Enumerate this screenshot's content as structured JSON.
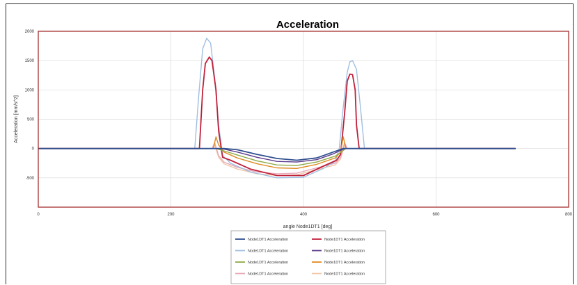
{
  "chart_data": {
    "type": "line",
    "title": "Acceleration",
    "xlabel": "angle Node1DT1 [deg]",
    "ylabel": "Acceleration [mm/s^2]",
    "xlim": [
      0,
      800
    ],
    "ylim": [
      -1000,
      2000
    ],
    "x_ticks": [
      "0",
      "200",
      "400",
      "600",
      "800"
    ],
    "y_ticks": [
      "2000",
      "1500",
      "1000",
      "500",
      "0",
      "-500"
    ],
    "grid": true,
    "legend_position": "bottom",
    "colors": {
      "border": "#a33030",
      "grid": "#d9d9d9"
    },
    "series": [
      {
        "name": "Node1DT1 Acceleration",
        "color": "#2f4f8f",
        "x": [
          0,
          272,
          280,
          300,
          330,
          360,
          390,
          420,
          445,
          460,
          470,
          720
        ],
        "y": [
          0,
          0,
          0,
          -20,
          -100,
          -170,
          -200,
          -160,
          -60,
          0,
          0,
          0
        ]
      },
      {
        "name": "Node1DT1 Acceleration",
        "color": "#c0203a",
        "x": [
          0,
          243,
          248,
          252,
          258,
          262,
          268,
          272,
          278,
          290,
          320,
          360,
          400,
          430,
          450,
          456,
          462,
          466,
          470,
          474,
          478,
          480,
          484,
          720
        ],
        "y": [
          0,
          0,
          1000,
          1450,
          1560,
          1500,
          1000,
          300,
          -150,
          -200,
          -350,
          -460,
          -460,
          -300,
          -200,
          -100,
          600,
          1150,
          1270,
          1260,
          1000,
          400,
          0,
          0
        ]
      },
      {
        "name": "Node1DT1 Acceleration",
        "color": "#9fbfe0",
        "x": [
          0,
          236,
          242,
          248,
          254,
          260,
          266,
          272,
          278,
          290,
          320,
          360,
          400,
          430,
          448,
          454,
          460,
          466,
          470,
          474,
          480,
          486,
          492,
          720
        ],
        "y": [
          0,
          0,
          900,
          1700,
          1880,
          1800,
          1200,
          400,
          -120,
          -250,
          -400,
          -500,
          -490,
          -340,
          -220,
          0,
          700,
          1300,
          1480,
          1500,
          1350,
          700,
          0,
          0
        ]
      },
      {
        "name": "Node1DT1 Acceleration",
        "color": "#5a3a8a",
        "x": [
          0,
          270,
          280,
          300,
          330,
          360,
          390,
          420,
          445,
          462,
          720
        ],
        "y": [
          0,
          0,
          -10,
          -60,
          -150,
          -220,
          -230,
          -190,
          -90,
          0,
          0
        ]
      },
      {
        "name": "Node1DT1 Acceleration",
        "color": "#8faa4a",
        "x": [
          0,
          268,
          280,
          300,
          330,
          360,
          390,
          420,
          448,
          464,
          720
        ],
        "y": [
          0,
          0,
          -40,
          -110,
          -210,
          -280,
          -290,
          -230,
          -130,
          0,
          0
        ]
      },
      {
        "name": "Node1DT1 Acceleration",
        "color": "#e08a20",
        "x": [
          0,
          264,
          268,
          272,
          280,
          300,
          330,
          360,
          390,
          420,
          448,
          456,
          460,
          464,
          720
        ],
        "y": [
          0,
          0,
          200,
          60,
          -60,
          -160,
          -260,
          -330,
          -340,
          -270,
          -160,
          -60,
          200,
          0,
          0
        ]
      },
      {
        "name": "Node1DT1 Acceleration",
        "color": "#e8a8b8",
        "x": [
          0,
          262,
          266,
          272,
          280,
          300,
          330,
          360,
          390,
          420,
          448,
          456,
          462,
          466,
          720
        ],
        "y": [
          0,
          0,
          100,
          -120,
          -230,
          -320,
          -400,
          -430,
          -420,
          -330,
          -250,
          -150,
          100,
          0,
          0
        ]
      },
      {
        "name": "Node1DT1 Acceleration",
        "color": "#f0c8a8",
        "x": [
          0,
          262,
          266,
          272,
          280,
          300,
          330,
          360,
          390,
          420,
          448,
          456,
          462,
          466,
          720
        ],
        "y": [
          0,
          0,
          60,
          -150,
          -260,
          -350,
          -430,
          -460,
          -450,
          -360,
          -280,
          -180,
          60,
          0,
          0
        ]
      }
    ]
  }
}
